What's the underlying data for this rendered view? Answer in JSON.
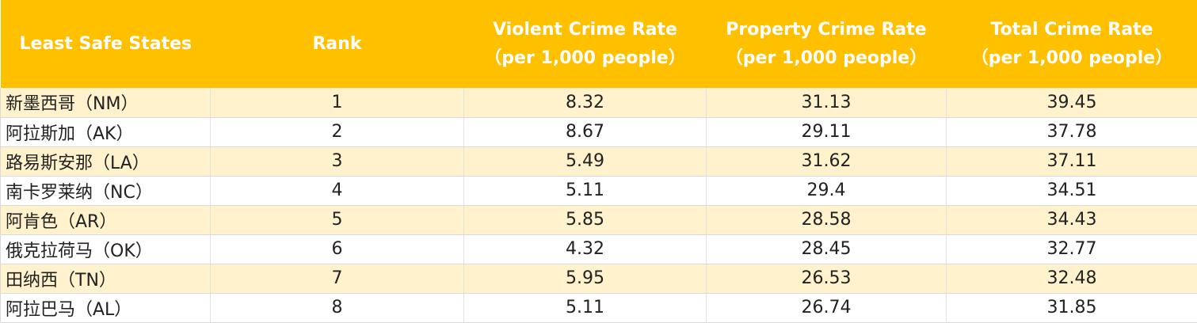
{
  "table": {
    "headers": {
      "state": "Least Safe States",
      "rank": "Rank",
      "violent": [
        "Violent Crime Rate",
        "（per 1,000 people）"
      ],
      "property": [
        "Property Crime Rate",
        "（per 1,000 people）"
      ],
      "total": [
        "Total Crime Rate",
        "（per 1,000 people）"
      ]
    },
    "rows": [
      {
        "state": "新墨西哥（NM）",
        "rank": "1",
        "violent": "8.32",
        "property": "31.13",
        "total": "39.45"
      },
      {
        "state": "阿拉斯加（AK）",
        "rank": "2",
        "violent": "8.67",
        "property": "29.11",
        "total": "37.78"
      },
      {
        "state": "路易斯安那（LA）",
        "rank": "3",
        "violent": "5.49",
        "property": "31.62",
        "total": "37.11"
      },
      {
        "state": "南卡罗莱纳（NC）",
        "rank": "4",
        "violent": "5.11",
        "property": "29.4",
        "total": "34.51"
      },
      {
        "state": "阿肯色（AR）",
        "rank": "5",
        "violent": "5.85",
        "property": "28.58",
        "total": "34.43"
      },
      {
        "state": "俄克拉荷马（OK）",
        "rank": "6",
        "violent": "4.32",
        "property": "28.45",
        "total": "32.77"
      },
      {
        "state": "田纳西（TN）",
        "rank": "7",
        "violent": "5.95",
        "property": "26.53",
        "total": "32.48"
      },
      {
        "state": "阿拉巴马（AL）",
        "rank": "8",
        "violent": "5.11",
        "property": "26.74",
        "total": "31.85"
      }
    ]
  },
  "colors": {
    "header_bg": "#ffc000",
    "header_text": "#ffffff",
    "band_row": "#fff2cc"
  }
}
